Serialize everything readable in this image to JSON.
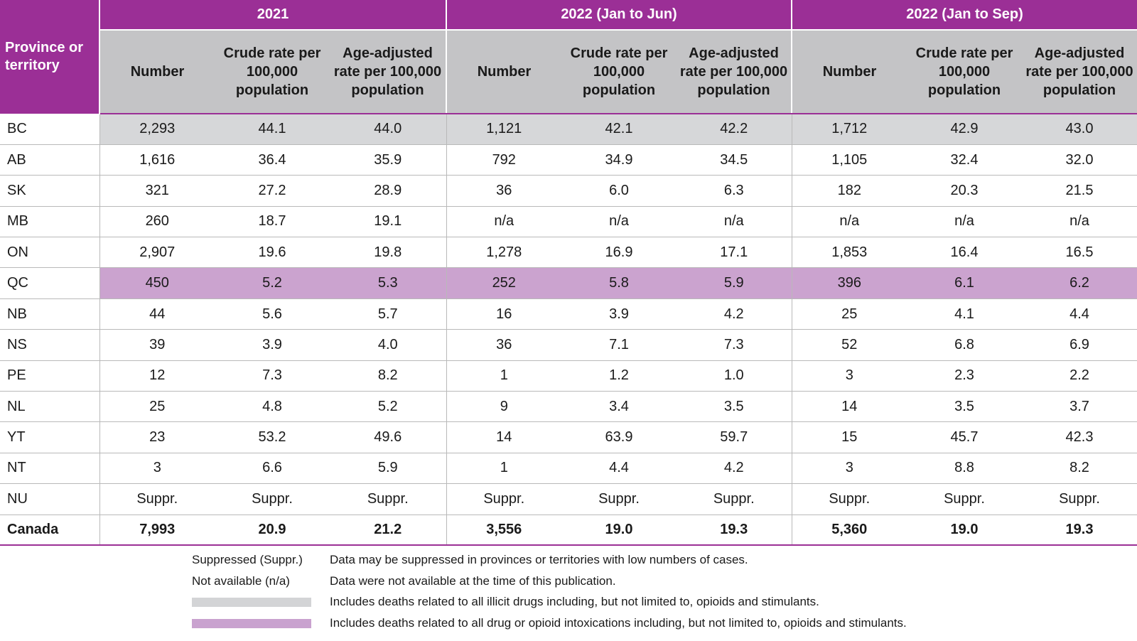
{
  "table": {
    "row_header": "Province or territory",
    "groups": [
      "2021",
      "2022 (Jan to Jun)",
      "2022 (Jan to Sep)"
    ],
    "subheaders": [
      "Number",
      "Crude rate per 100,000 population",
      "Age-adjusted rate per 100,000 population"
    ],
    "rows": [
      {
        "name": "BC",
        "values": [
          "2,293",
          "44.1",
          "44.0",
          "1,121",
          "42.1",
          "42.2",
          "1,712",
          "42.9",
          "43.0"
        ]
      },
      {
        "name": "AB",
        "values": [
          "1,616",
          "36.4",
          "35.9",
          "792",
          "34.9",
          "34.5",
          "1,105",
          "32.4",
          "32.0"
        ]
      },
      {
        "name": "SK",
        "values": [
          "321",
          "27.2",
          "28.9",
          "36",
          "6.0",
          "6.3",
          "182",
          "20.3",
          "21.5"
        ]
      },
      {
        "name": "MB",
        "values": [
          "260",
          "18.7",
          "19.1",
          "n/a",
          "n/a",
          "n/a",
          "n/a",
          "n/a",
          "n/a"
        ]
      },
      {
        "name": "ON",
        "values": [
          "2,907",
          "19.6",
          "19.8",
          "1,278",
          "16.9",
          "17.1",
          "1,853",
          "16.4",
          "16.5"
        ]
      },
      {
        "name": "QC",
        "values": [
          "450",
          "5.2",
          "5.3",
          "252",
          "5.8",
          "5.9",
          "396",
          "6.1",
          "6.2"
        ]
      },
      {
        "name": "NB",
        "values": [
          "44",
          "5.6",
          "5.7",
          "16",
          "3.9",
          "4.2",
          "25",
          "4.1",
          "4.4"
        ]
      },
      {
        "name": "NS",
        "values": [
          "39",
          "3.9",
          "4.0",
          "36",
          "7.1",
          "7.3",
          "52",
          "6.8",
          "6.9"
        ]
      },
      {
        "name": "PE",
        "values": [
          "12",
          "7.3",
          "8.2",
          "1",
          "1.2",
          "1.0",
          "3",
          "2.3",
          "2.2"
        ]
      },
      {
        "name": "NL",
        "values": [
          "25",
          "4.8",
          "5.2",
          "9",
          "3.4",
          "3.5",
          "14",
          "3.5",
          "3.7"
        ]
      },
      {
        "name": "YT",
        "values": [
          "23",
          "53.2",
          "49.6",
          "14",
          "63.9",
          "59.7",
          "15",
          "45.7",
          "42.3"
        ]
      },
      {
        "name": "NT",
        "values": [
          "3",
          "6.6",
          "5.9",
          "1",
          "4.4",
          "4.2",
          "3",
          "8.8",
          "8.2"
        ]
      },
      {
        "name": "NU",
        "values": [
          "Suppr.",
          "Suppr.",
          "Suppr.",
          "Suppr.",
          "Suppr.",
          "Suppr.",
          "Suppr.",
          "Suppr.",
          "Suppr."
        ]
      },
      {
        "name": "Canada",
        "values": [
          "7,993",
          "20.9",
          "21.2",
          "3,556",
          "19.0",
          "19.3",
          "5,360",
          "19.0",
          "19.3"
        ]
      }
    ]
  },
  "legend": {
    "suppressed_label": "Suppressed (Suppr.)",
    "suppressed_desc": "Data may be suppressed in provinces or territories with low numbers of cases.",
    "na_label": "Not available (n/a)",
    "na_desc": "Data were not available at the time of this publication.",
    "grey_desc": "Includes deaths related to all illicit drugs including, but not limited to, opioids and stimulants.",
    "purple_desc": "Includes deaths related to all drug or opioid intoxications including, but not limited to, opioids and stimulants."
  },
  "colors": {
    "header_purple": "#9b2f96",
    "subheader_grey": "#c4c4c6",
    "bc_row_grey": "#d6d7d9",
    "qc_row_purple": "#cba3cf"
  }
}
